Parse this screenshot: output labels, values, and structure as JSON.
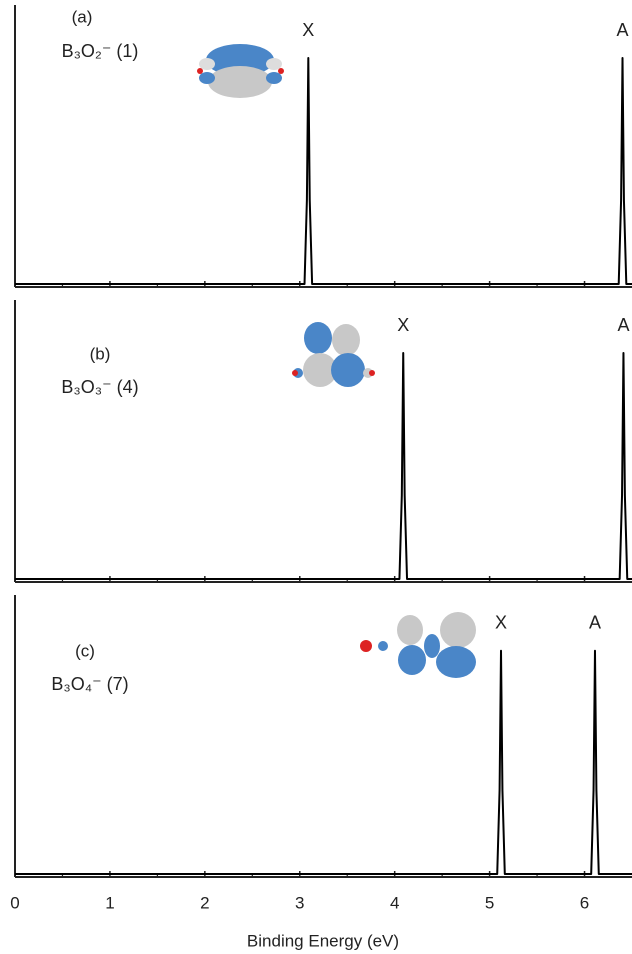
{
  "chart_data": [
    {
      "type": "line",
      "panel_label": "(a)",
      "formula": "B₃O₂⁻ (1)",
      "x": [
        0,
        3.05,
        3.075,
        3.09,
        3.105,
        3.13,
        6.36,
        6.385,
        6.4,
        6.415,
        6.44,
        6.5
      ],
      "values": [
        0,
        0,
        0.3,
        0.81,
        0.3,
        0,
        0,
        0.3,
        0.81,
        0.3,
        0,
        0
      ],
      "peak_labels": [
        "X",
        "A"
      ],
      "color": "#000000",
      "xlim": [
        0,
        6.5
      ],
      "xticks": [
        0,
        1,
        2,
        3,
        4,
        5,
        6
      ],
      "ylim": [
        0,
        1
      ]
    },
    {
      "type": "line",
      "panel_label": "(b)",
      "formula": "B₃O₃⁻ (4)",
      "x": [
        0,
        4.05,
        4.075,
        4.09,
        4.105,
        4.13,
        6.37,
        6.395,
        6.41,
        6.425,
        6.45,
        6.5
      ],
      "values": [
        0,
        0,
        0.3,
        0.81,
        0.3,
        0,
        0,
        0.3,
        0.81,
        0.3,
        0,
        0
      ],
      "peak_labels": [
        "X",
        "A"
      ],
      "color": "#000000",
      "xlim": [
        0,
        6.5
      ],
      "xticks": [
        0,
        1,
        2,
        3,
        4,
        5,
        6
      ],
      "ylim": [
        0,
        1
      ]
    },
    {
      "type": "line",
      "panel_label": "(c)",
      "formula": "B₃O₄⁻ (7)",
      "x": [
        0,
        5.08,
        5.105,
        5.12,
        5.135,
        5.16,
        6.07,
        6.095,
        6.11,
        6.125,
        6.15,
        6.5
      ],
      "values": [
        0,
        0,
        0.3,
        0.8,
        0.3,
        0,
        0,
        0.3,
        0.8,
        0.3,
        0,
        0
      ],
      "peak_labels": [
        "X",
        "A"
      ],
      "color": "#000000",
      "xlim": [
        0,
        6.5
      ],
      "xticks": [
        0,
        1,
        2,
        3,
        4,
        5,
        6
      ],
      "ylim": [
        0,
        1
      ],
      "xlabel": "Binding Energy (eV)"
    }
  ]
}
